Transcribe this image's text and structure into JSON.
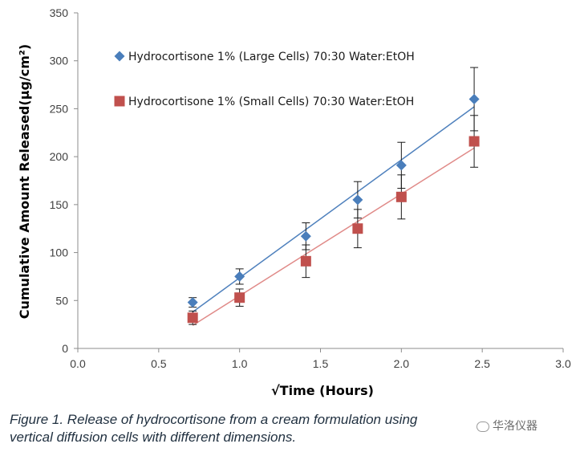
{
  "chart_data": {
    "type": "scatter",
    "xlabel": "√Time (Hours)",
    "ylabel": "Cumulative Amount Released(μg/cm²)",
    "xlim": [
      0,
      3.0
    ],
    "ylim": [
      0,
      350
    ],
    "xticks": [
      "0.0",
      "0.5",
      "1.0",
      "1.5",
      "2.0",
      "2.5",
      "3.0"
    ],
    "yticks": [
      "0",
      "50",
      "100",
      "150",
      "200",
      "250",
      "300",
      "350"
    ],
    "grid": false,
    "legend_position": "top-left",
    "series": [
      {
        "name": "Hydrocortisone 1% (Large Cells) 70:30 Water:EtOH",
        "marker": "diamond",
        "color": "#4a7ebb",
        "line_color": "#4f81bd",
        "x": [
          0.71,
          1.0,
          1.41,
          1.73,
          2.0,
          2.45
        ],
        "y": [
          48,
          75,
          117,
          155,
          191,
          260
        ],
        "err": [
          5,
          8,
          14,
          19,
          24,
          33
        ],
        "trend": [
          [
            0.71,
            38
          ],
          [
            2.45,
            252
          ]
        ]
      },
      {
        "name": "Hydrocortisone 1% (Small Cells) 70:30 Water:EtOH",
        "marker": "square",
        "color": "#c0504d",
        "line_color": "#e08a88",
        "x": [
          0.71,
          1.0,
          1.41,
          1.73,
          2.0,
          2.45
        ],
        "y": [
          32,
          53,
          91,
          125,
          158,
          216
        ],
        "err": [
          7,
          9,
          17,
          20,
          23,
          27
        ],
        "trend": [
          [
            0.71,
            24
          ],
          [
            2.45,
            209
          ]
        ]
      }
    ]
  },
  "caption": {
    "line1": "Figure 1.  Release of hydrocortisone from a cream formulation using",
    "line2": "vertical diffusion cells with different dimensions."
  },
  "watermark": {
    "text": "华洛仪器"
  }
}
